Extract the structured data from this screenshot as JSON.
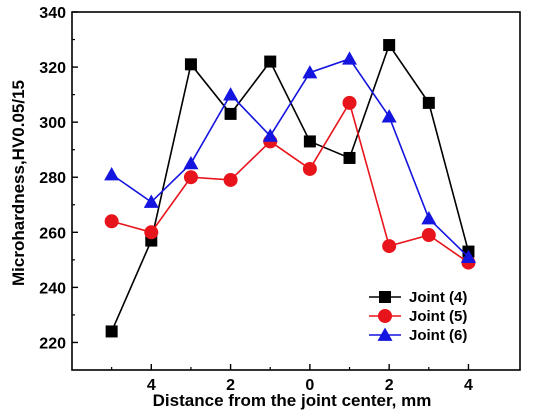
{
  "chart_data": {
    "type": "line",
    "xlabel": "Distance from the joint center, mm",
    "ylabel": "Microhardness,HV0.05/15",
    "x_ticks": [
      -4,
      -2,
      0,
      2,
      4
    ],
    "x_tick_labels": [
      "4",
      "2",
      "0",
      "2",
      "4"
    ],
    "xlim": [
      -6.0,
      5.3
    ],
    "y_ticks": [
      220,
      240,
      260,
      280,
      300,
      320,
      340
    ],
    "ylim": [
      210,
      340
    ],
    "legend_position": "bottom-right",
    "grid": false,
    "x": [
      -5,
      -4,
      -3,
      -2,
      -1,
      0,
      1,
      2,
      3,
      4
    ],
    "series": [
      {
        "name": "Joint (4)",
        "color": "#000000",
        "marker": "square",
        "values": [
          224,
          257,
          321,
          303,
          322,
          293,
          287,
          328,
          307,
          253
        ]
      },
      {
        "name": "Joint (5)",
        "color": "#e8141b",
        "marker": "circle",
        "values": [
          264,
          260,
          280,
          279,
          293,
          283,
          307,
          255,
          259,
          249
        ]
      },
      {
        "name": "Joint (6)",
        "color": "#1515e0",
        "marker": "triangle",
        "values": [
          281,
          271,
          285,
          310,
          295,
          318,
          323,
          302,
          265,
          251
        ]
      }
    ]
  }
}
